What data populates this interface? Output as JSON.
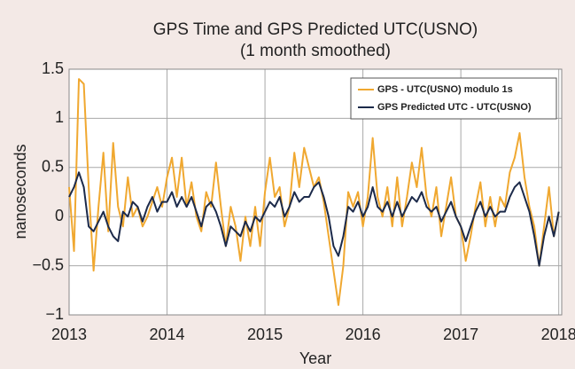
{
  "chart_data": {
    "type": "line",
    "title": "GPS Time and GPS Predicted UTC(USNO)",
    "subtitle": "(1 month smoothed)",
    "xlabel": "Year",
    "ylabel": "nanoseconds",
    "x": [
      2013,
      2013.05,
      2013.1,
      2013.15,
      2013.2,
      2013.25,
      2013.3,
      2013.35,
      2013.4,
      2013.45,
      2013.5,
      2013.55,
      2013.6,
      2013.65,
      2013.7,
      2013.75,
      2013.8,
      2013.85,
      2013.9,
      2013.95,
      2014,
      2014.05,
      2014.1,
      2014.15,
      2014.2,
      2014.25,
      2014.3,
      2014.35,
      2014.4,
      2014.45,
      2014.5,
      2014.55,
      2014.6,
      2014.65,
      2014.7,
      2014.75,
      2014.8,
      2014.85,
      2014.9,
      2014.95,
      2015,
      2015.05,
      2015.1,
      2015.15,
      2015.2,
      2015.25,
      2015.3,
      2015.35,
      2015.4,
      2015.45,
      2015.5,
      2015.55,
      2015.6,
      2015.65,
      2015.7,
      2015.75,
      2015.8,
      2015.85,
      2015.9,
      2015.95,
      2016,
      2016.05,
      2016.1,
      2016.15,
      2016.2,
      2016.25,
      2016.3,
      2016.35,
      2016.4,
      2016.45,
      2016.5,
      2016.55,
      2016.6,
      2016.65,
      2016.7,
      2016.75,
      2016.8,
      2016.85,
      2016.9,
      2016.95,
      2017,
      2017.05,
      2017.1,
      2017.15,
      2017.2,
      2017.25,
      2017.3,
      2017.35,
      2017.4,
      2017.45,
      2017.5,
      2017.55,
      2017.6,
      2017.65,
      2017.7,
      2017.75,
      2017.8,
      2017.85,
      2017.9,
      2017.95,
      2018
    ],
    "series": [
      {
        "name": "GPS - UTC(USNO) modulo 1s",
        "color": "#f0a830",
        "values": [
          0.3,
          -0.35,
          1.4,
          1.35,
          0.3,
          -0.55,
          0.1,
          0.65,
          -0.15,
          0.75,
          0.1,
          -0.1,
          0.4,
          0.0,
          0.1,
          -0.1,
          0.0,
          0.15,
          0.3,
          0.1,
          0.4,
          0.6,
          0.2,
          0.6,
          0.1,
          0.35,
          0.0,
          -0.15,
          0.25,
          0.1,
          0.55,
          0.1,
          -0.3,
          0.1,
          -0.1,
          -0.45,
          0.0,
          -0.3,
          0.1,
          -0.3,
          0.25,
          0.6,
          0.2,
          0.3,
          -0.1,
          0.1,
          0.65,
          0.3,
          0.7,
          0.5,
          0.3,
          0.4,
          0.15,
          -0.2,
          -0.55,
          -0.9,
          -0.5,
          0.25,
          0.1,
          0.25,
          -0.1,
          0.2,
          0.8,
          0.2,
          0.0,
          0.3,
          -0.1,
          0.4,
          -0.1,
          0.2,
          0.55,
          0.3,
          0.7,
          0.2,
          0.0,
          0.3,
          -0.2,
          0.1,
          0.4,
          0.0,
          -0.1,
          -0.45,
          -0.2,
          0.1,
          0.35,
          -0.1,
          0.2,
          -0.1,
          0.2,
          0.1,
          0.45,
          0.6,
          0.85,
          0.4,
          0.1,
          -0.1,
          -0.5,
          -0.1,
          0.3,
          -0.2,
          0.05
        ]
      },
      {
        "name": "GPS Predicted UTC - UTC(USNO)",
        "color": "#1c2a4a",
        "values": [
          0.2,
          0.3,
          0.45,
          0.3,
          -0.1,
          -0.15,
          -0.05,
          0.05,
          -0.1,
          -0.2,
          -0.25,
          0.05,
          0.0,
          0.15,
          0.1,
          -0.05,
          0.1,
          0.2,
          0.05,
          0.15,
          0.15,
          0.25,
          0.1,
          0.2,
          0.1,
          0.2,
          0.05,
          -0.1,
          0.1,
          0.15,
          0.05,
          -0.1,
          -0.3,
          -0.1,
          -0.15,
          -0.2,
          -0.05,
          -0.15,
          0.0,
          -0.05,
          0.05,
          0.15,
          0.1,
          0.2,
          0.0,
          0.1,
          0.25,
          0.15,
          0.2,
          0.2,
          0.3,
          0.35,
          0.2,
          0.0,
          -0.3,
          -0.4,
          -0.2,
          0.1,
          0.05,
          0.15,
          0.0,
          0.1,
          0.3,
          0.1,
          0.05,
          0.15,
          0.0,
          0.15,
          0.0,
          0.1,
          0.2,
          0.15,
          0.25,
          0.1,
          0.05,
          0.1,
          -0.05,
          0.05,
          0.15,
          0.0,
          -0.1,
          -0.25,
          -0.1,
          0.05,
          0.15,
          0.0,
          0.1,
          0.0,
          0.05,
          0.05,
          0.2,
          0.3,
          0.35,
          0.2,
          0.05,
          -0.2,
          -0.5,
          -0.2,
          0.0,
          -0.2,
          0.05
        ]
      }
    ],
    "xlim": [
      2013,
      2018.03
    ],
    "xticks": [
      2013,
      2014,
      2015,
      2016,
      2017,
      2018
    ],
    "ylim": [
      -1,
      1.5
    ],
    "yticks": [
      {
        "value": -1,
        "label": "−1"
      },
      {
        "value": -0.5,
        "label": "−0.5"
      },
      0,
      0.5,
      1,
      1.5
    ],
    "grid": true,
    "legend": "upper right"
  }
}
